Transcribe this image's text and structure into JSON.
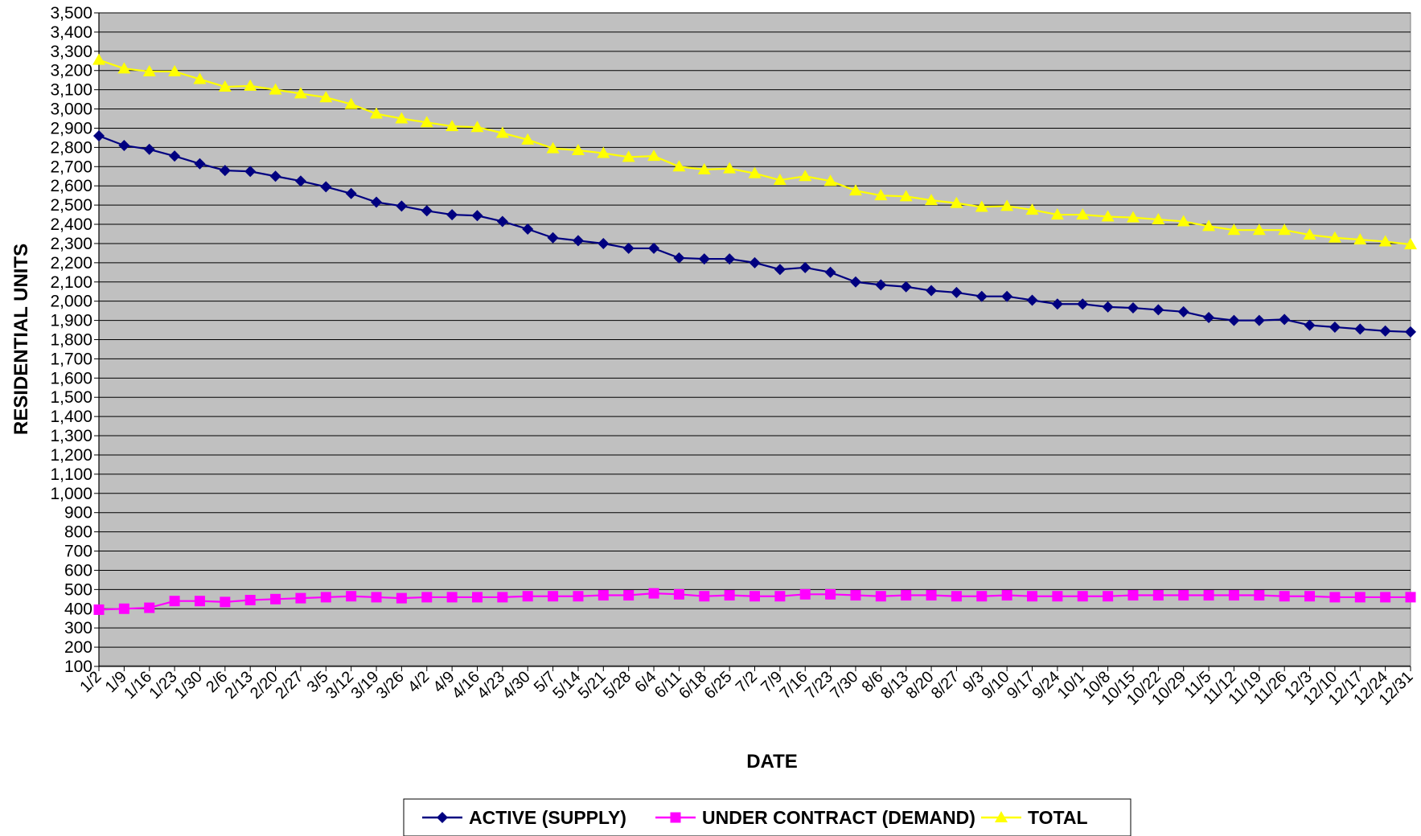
{
  "chart_data": {
    "type": "line",
    "title": "",
    "xlabel": "DATE",
    "ylabel": "RESIDENTIAL UNITS",
    "ylim": [
      100,
      3500
    ],
    "ytick_step": 100,
    "grid": true,
    "legend_position": "bottom",
    "plot_background": "#c0c0c0",
    "categories": [
      "1/2",
      "1/9",
      "1/16",
      "1/23",
      "1/30",
      "2/6",
      "2/13",
      "2/20",
      "2/27",
      "3/5",
      "3/12",
      "3/19",
      "3/26",
      "4/2",
      "4/9",
      "4/16",
      "4/23",
      "4/30",
      "5/7",
      "5/14",
      "5/21",
      "5/28",
      "6/4",
      "6/11",
      "6/18",
      "6/25",
      "7/2",
      "7/9",
      "7/16",
      "7/23",
      "7/30",
      "8/6",
      "8/13",
      "8/20",
      "8/27",
      "9/3",
      "9/10",
      "9/17",
      "9/24",
      "10/1",
      "10/8",
      "10/15",
      "10/22",
      "10/29",
      "11/5",
      "11/12",
      "11/19",
      "11/26",
      "12/3",
      "12/10",
      "12/17",
      "12/24",
      "12/31"
    ],
    "series": [
      {
        "name": "ACTIVE (SUPPLY)",
        "color": "#000080",
        "marker": "diamond",
        "values": [
          2860,
          2810,
          2790,
          2755,
          2715,
          2680,
          2675,
          2650,
          2625,
          2595,
          2560,
          2515,
          2495,
          2470,
          2450,
          2445,
          2415,
          2375,
          2330,
          2315,
          2300,
          2275,
          2275,
          2225,
          2220,
          2220,
          2200,
          2165,
          2175,
          2150,
          2100,
          2085,
          2075,
          2055,
          2045,
          2025,
          2025,
          2005,
          1985,
          1985,
          1970,
          1965,
          1955,
          1945,
          1915,
          1900,
          1900,
          1905,
          1875,
          1865,
          1855,
          1845,
          1840
        ]
      },
      {
        "name": "UNDER CONTRACT (DEMAND)",
        "color": "#ff00ff",
        "marker": "square",
        "values": [
          395,
          400,
          405,
          440,
          440,
          435,
          445,
          450,
          455,
          460,
          465,
          460,
          455,
          460,
          460,
          460,
          460,
          465,
          465,
          465,
          470,
          470,
          480,
          475,
          465,
          470,
          465,
          465,
          475,
          475,
          470,
          465,
          470,
          470,
          465,
          465,
          470,
          465,
          465,
          465,
          465,
          470,
          470,
          470,
          470,
          470,
          470,
          465,
          465,
          460,
          460,
          460,
          460
        ]
      },
      {
        "name": "TOTAL",
        "color": "#ffff00",
        "marker": "triangle",
        "values": [
          3255,
          3210,
          3195,
          3195,
          3155,
          3115,
          3120,
          3100,
          3080,
          3060,
          3025,
          2975,
          2950,
          2930,
          2910,
          2905,
          2875,
          2840,
          2795,
          2785,
          2770,
          2750,
          2755,
          2700,
          2685,
          2690,
          2665,
          2630,
          2650,
          2625,
          2575,
          2550,
          2545,
          2525,
          2510,
          2490,
          2495,
          2475,
          2450,
          2450,
          2440,
          2435,
          2425,
          2415,
          2390,
          2370,
          2370,
          2370,
          2345,
          2330,
          2320,
          2310,
          2295
        ]
      }
    ]
  }
}
